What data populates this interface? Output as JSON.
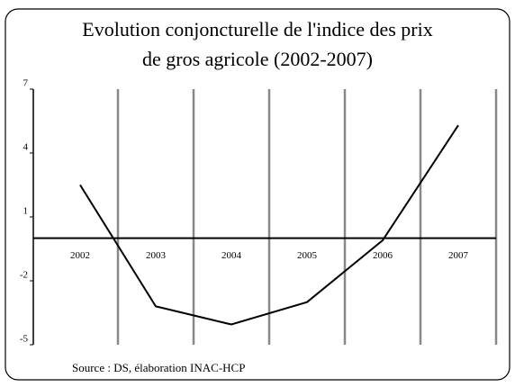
{
  "chart_data": {
    "type": "line",
    "title": [
      "Evolution conjoncturelle de l'indice des prix",
      "de gros agricole (2002-2007)"
    ],
    "categories": [
      "2002",
      "2003",
      "2004",
      "2005",
      "2006",
      "2007"
    ],
    "values": [
      2.5,
      -3.2,
      -4.05,
      -3.0,
      -0.1,
      5.3
    ],
    "color": "#000000",
    "ylim": [
      -5,
      7
    ],
    "yticks": [
      7,
      4,
      1,
      -2,
      -5
    ],
    "source": "Source : DS, élaboration INAC-HCP"
  }
}
